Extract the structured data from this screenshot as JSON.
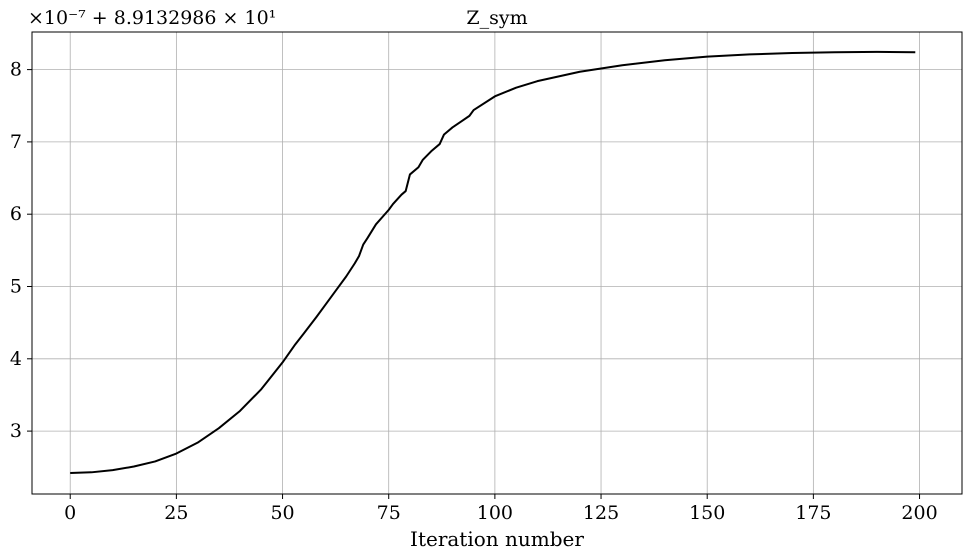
{
  "chart_data": {
    "type": "line",
    "title": "Z_sym",
    "xlabel": "Iteration number",
    "ylabel": "",
    "offset_label": "×10⁻⁷ + 8.9132986 × 10¹",
    "xlim": [
      -9,
      210
    ],
    "ylim": [
      2.13,
      8.52
    ],
    "x_ticks": [
      0,
      25,
      50,
      75,
      100,
      125,
      150,
      175,
      200
    ],
    "y_ticks": [
      3,
      4,
      5,
      6,
      7,
      8
    ],
    "grid": true,
    "series": [
      {
        "color": "#000000",
        "x": [
          0,
          5,
          10,
          15,
          20,
          25,
          30,
          35,
          40,
          45,
          50,
          53,
          55,
          58,
          60,
          63,
          65,
          67,
          68,
          69,
          70,
          72,
          75,
          76,
          78,
          79,
          80,
          82,
          83,
          85,
          87,
          88,
          90,
          92,
          94,
          95,
          100,
          105,
          110,
          120,
          130,
          140,
          150,
          160,
          170,
          180,
          190,
          199
        ],
        "y": [
          2.42,
          2.43,
          2.46,
          2.51,
          2.58,
          2.69,
          2.84,
          3.04,
          3.28,
          3.58,
          3.95,
          4.2,
          4.35,
          4.58,
          4.74,
          4.98,
          5.14,
          5.32,
          5.42,
          5.58,
          5.67,
          5.86,
          6.06,
          6.14,
          6.27,
          6.32,
          6.55,
          6.65,
          6.75,
          6.87,
          6.97,
          7.1,
          7.2,
          7.28,
          7.36,
          7.44,
          7.63,
          7.75,
          7.84,
          7.97,
          8.06,
          8.13,
          8.18,
          8.21,
          8.23,
          8.24,
          8.245,
          8.24
        ]
      }
    ]
  }
}
